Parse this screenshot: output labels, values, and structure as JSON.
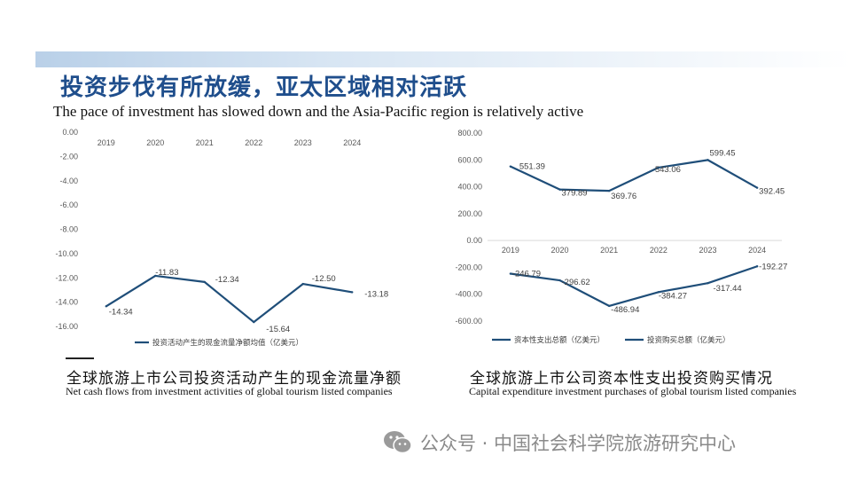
{
  "header": {
    "title_cn": "投资步伐有所放缓，亚太区域相对活跃",
    "title_en": "The pace of investment has slowed down and the Asia-Pacific region is relatively active"
  },
  "colors": {
    "series": "#1f4e79",
    "title": "#1f4e8c",
    "accent_band": "#b9d0e8"
  },
  "chart_data": [
    {
      "type": "line",
      "title": "",
      "categories": [
        "2019",
        "2020",
        "2021",
        "2022",
        "2023",
        "2024"
      ],
      "series": [
        {
          "name": "投资活动产生的现金流量净额均值（亿美元）",
          "values": [
            -14.34,
            -11.83,
            -12.34,
            -15.64,
            -12.5,
            -13.18
          ]
        }
      ],
      "data_labels": [
        "-14.34",
        "-11.83",
        "-12.34",
        "-15.64",
        "-12.50",
        "-13.18"
      ],
      "y_ticks": [
        "0.00",
        "-2.00",
        "-4.00",
        "-6.00",
        "-8.00",
        "-10.00",
        "-12.00",
        "-14.00",
        "-16.00"
      ],
      "ylim": [
        -16,
        0
      ],
      "xlabel": "",
      "ylabel": "",
      "legend_position": "bottom",
      "caption_cn": "全球旅游上市公司投资活动产生的现金流量净额",
      "caption_en": "Net cash flows from investment activities of global tourism listed companies"
    },
    {
      "type": "line",
      "title": "",
      "categories": [
        "2019",
        "2020",
        "2021",
        "2022",
        "2023",
        "2024"
      ],
      "series": [
        {
          "name": "资本性支出总额（亿美元）",
          "values": [
            551.39,
            379.89,
            369.76,
            543.06,
            599.45,
            392.45
          ],
          "data_labels": [
            "551.39",
            "379.89",
            "369.76",
            "543.06",
            "599.45",
            "392.45"
          ]
        },
        {
          "name": "投资购买总额（亿美元）",
          "values": [
            -246.79,
            -296.62,
            -486.94,
            -384.27,
            -317.44,
            -192.27
          ],
          "data_labels": [
            "-246.79",
            "-296.62",
            "-486.94",
            "-384.27",
            "-317.44",
            "-192.27"
          ]
        }
      ],
      "y_ticks": [
        "800.00",
        "600.00",
        "400.00",
        "200.00",
        "0.00",
        "-200.00",
        "-400.00",
        "-600.00"
      ],
      "ylim": [
        -600,
        800
      ],
      "xlabel": "",
      "ylabel": "",
      "legend_position": "bottom",
      "caption_cn": "全球旅游上市公司资本性支出投资购买情况",
      "caption_en": "Capital expenditure investment purchases of global tourism listed companies"
    }
  ],
  "footer": {
    "source_text": "公众号 · 中国社会科学院旅游研究中心",
    "icon": "wechat-icon"
  }
}
